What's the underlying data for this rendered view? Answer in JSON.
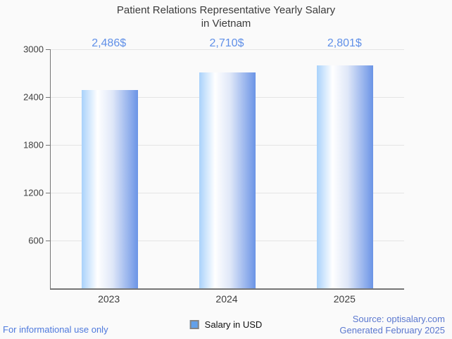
{
  "title": {
    "line1": "Patient Relations Representative Yearly Salary",
    "line2": "in Vietnam"
  },
  "chart_data": {
    "type": "bar",
    "categories": [
      "2023",
      "2024",
      "2025"
    ],
    "values": [
      2486,
      2710,
      2801
    ],
    "value_labels": [
      "2,486$",
      "2,710$",
      "2,801$"
    ],
    "series": [
      {
        "name": "Salary in USD",
        "values": [
          2486,
          2710,
          2801
        ]
      }
    ],
    "title": "Patient Relations Representative Yearly Salary in Vietnam",
    "xlabel": "",
    "ylabel": "",
    "ylim": [
      0,
      3000
    ],
    "yticks": [
      600,
      1200,
      1800,
      2400,
      3000
    ],
    "grid": true,
    "legend_position": "bottom-center",
    "bar_gradient": [
      "#a9d2fb",
      "#ffffff",
      "#6b94e6"
    ]
  },
  "legend": {
    "label": "Salary in USD",
    "swatch_color": "#62a0ea",
    "swatch_border": "#848484"
  },
  "footer": {
    "left": "For informational use only",
    "source": "Source: optisalary.com",
    "generated": "Generated February 2025"
  },
  "colors": {
    "background": "#fafafa",
    "value_label": "#6090e8",
    "axis": "#757575",
    "gridline": "#e4e4e4",
    "title_text": "#3b3b3b",
    "tick_text": "#404040",
    "footer_left": "#4e79dd",
    "footer_right": "#5b78cf"
  }
}
